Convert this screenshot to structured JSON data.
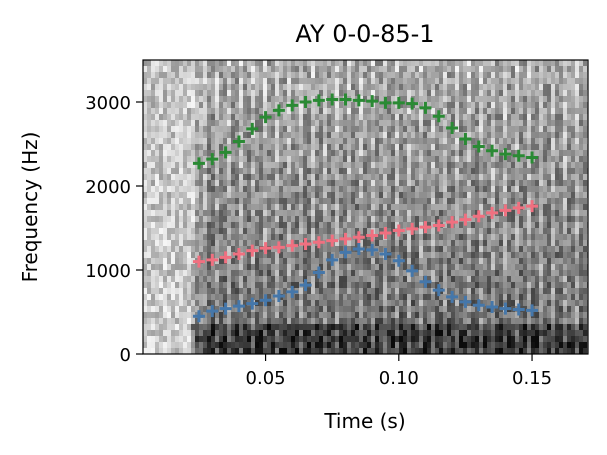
{
  "chart_data": {
    "type": "scatter",
    "title": "AY 0-0-85-1",
    "xlabel": "Time (s)",
    "ylabel": "Frequency (Hz)",
    "xlim": [
      0.004,
      0.171
    ],
    "ylim": [
      0,
      3500
    ],
    "xticks": [
      0.05,
      0.1,
      0.15
    ],
    "xtick_labels": [
      "0.05",
      "0.10",
      "0.15"
    ],
    "yticks": [
      0,
      1000,
      2000,
      3000
    ],
    "ytick_labels": [
      "0",
      "1000",
      "2000",
      "3000"
    ],
    "background": "grayscale spectrogram",
    "grid": false,
    "legend": "none",
    "marker": "plus",
    "series": [
      {
        "color": "#2a8a34",
        "x": [
          0.025,
          0.03,
          0.035,
          0.04,
          0.045,
          0.05,
          0.055,
          0.06,
          0.065,
          0.07,
          0.075,
          0.08,
          0.085,
          0.09,
          0.095,
          0.1,
          0.105,
          0.11,
          0.115,
          0.12,
          0.125,
          0.13,
          0.135,
          0.14,
          0.145,
          0.15
        ],
        "y": [
          2270,
          2320,
          2400,
          2530,
          2680,
          2820,
          2900,
          2960,
          3000,
          3020,
          3030,
          3030,
          3020,
          3010,
          2990,
          2990,
          2980,
          2930,
          2830,
          2690,
          2560,
          2470,
          2420,
          2380,
          2360,
          2340
        ]
      },
      {
        "color": "#f07080",
        "x": [
          0.025,
          0.03,
          0.035,
          0.04,
          0.045,
          0.05,
          0.055,
          0.06,
          0.065,
          0.07,
          0.075,
          0.08,
          0.085,
          0.09,
          0.095,
          0.1,
          0.105,
          0.11,
          0.115,
          0.12,
          0.125,
          0.13,
          0.135,
          0.14,
          0.145,
          0.15
        ],
        "y": [
          1100,
          1120,
          1150,
          1190,
          1230,
          1260,
          1270,
          1290,
          1310,
          1330,
          1350,
          1370,
          1390,
          1410,
          1440,
          1470,
          1490,
          1510,
          1530,
          1570,
          1600,
          1640,
          1680,
          1710,
          1740,
          1760
        ]
      },
      {
        "color": "#4577aa",
        "x": [
          0.025,
          0.03,
          0.035,
          0.04,
          0.045,
          0.05,
          0.055,
          0.06,
          0.065,
          0.07,
          0.075,
          0.08,
          0.085,
          0.09,
          0.095,
          0.1,
          0.105,
          0.11,
          0.115,
          0.12,
          0.125,
          0.13,
          0.135,
          0.14,
          0.145,
          0.15
        ],
        "y": [
          450,
          510,
          540,
          570,
          600,
          640,
          690,
          740,
          820,
          970,
          1120,
          1210,
          1250,
          1240,
          1190,
          1110,
          990,
          860,
          760,
          680,
          620,
          580,
          560,
          540,
          530,
          520
        ]
      }
    ]
  }
}
